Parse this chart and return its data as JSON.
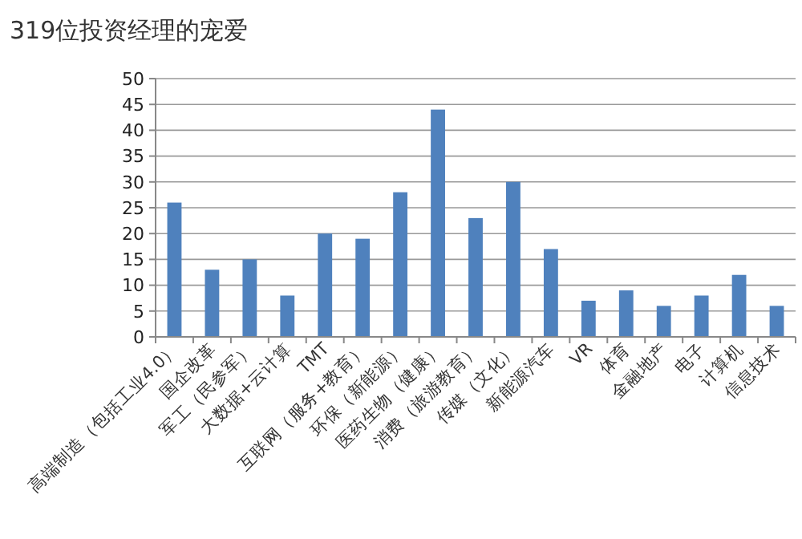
{
  "chart_data": {
    "type": "bar",
    "title": "319位投资经理的宠爱",
    "categories": [
      "高端制造（包括工业4.0）",
      "国企改革",
      "军工（民参军）",
      "大数据+云计算",
      "TMT",
      "互联网（服务+教育）",
      "环保（新能源）",
      "医药生物（健康）",
      "消费（旅游教育）",
      "传媒（文化）",
      "新能源汽车",
      "VR",
      "体育",
      "金融地产",
      "电子",
      "计算机",
      "信息技术"
    ],
    "values": [
      26,
      13,
      15,
      8,
      20,
      19,
      28,
      44,
      23,
      30,
      17,
      7,
      9,
      6,
      8,
      12,
      6
    ],
    "color": "#4f81bd",
    "ylim": [
      0,
      50
    ],
    "yticks": [
      0,
      5,
      10,
      15,
      20,
      25,
      30,
      35,
      40,
      45,
      50
    ],
    "grid": "y"
  }
}
